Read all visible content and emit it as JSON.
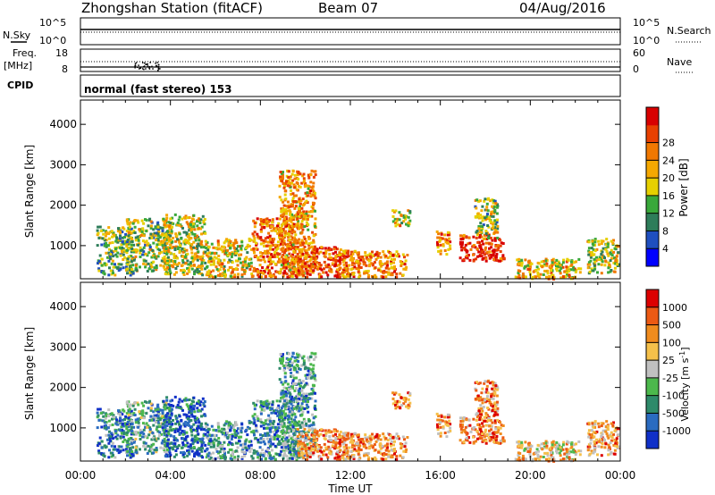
{
  "header": {
    "station": "Zhongshan Station (fitACF)",
    "beam": "Beam 07",
    "date": "04/Aug/2016"
  },
  "noise_panel": {
    "left_label": "N.Sky",
    "right_label": "N.Search",
    "left_ticks": [
      "10^5",
      "10^0"
    ],
    "right_ticks": [
      "10^5",
      "10^0"
    ]
  },
  "freq_panel": {
    "left_label": "Freq.",
    "unit": "[MHz]",
    "right_label": "Nave",
    "left_ticks": [
      "18",
      "8"
    ],
    "right_ticks": [
      "60",
      "0"
    ]
  },
  "cpid": {
    "label": "CPID",
    "mode": "normal (fast stereo) 153"
  },
  "time_axis": {
    "label": "Time UT",
    "ticks": [
      "00:00",
      "04:00",
      "08:00",
      "12:00",
      "16:00",
      "20:00",
      "00:00"
    ],
    "hours": [
      0,
      4,
      8,
      12,
      16,
      20,
      24
    ]
  },
  "chart_data": [
    {
      "type": "heatmap",
      "title": "Power",
      "ylabel": "Slant Range [km]",
      "xlabel": "",
      "xlim": [
        0,
        24
      ],
      "ylim": [
        180,
        4600
      ],
      "yticks": [
        "1000",
        "2000",
        "3000",
        "4000"
      ],
      "ytick_values": [
        1000,
        2000,
        3000,
        4000
      ],
      "colorbar": {
        "label": "Power [dB]",
        "tick_labels": [
          "4",
          "8",
          "12",
          "16",
          "20",
          "24",
          "28"
        ],
        "colors": [
          "#0000ff",
          "#1f4fbf",
          "#2e7d5a",
          "#39a83a",
          "#e6d000",
          "#f5a800",
          "#f07800",
          "#e84000",
          "#d80000"
        ]
      },
      "echo_regions": [
        {
          "t0": 0.7,
          "t1": 2.3,
          "r0": 300,
          "r1": 1500,
          "level": 0.4
        },
        {
          "t0": 2.0,
          "t1": 4.0,
          "r0": 400,
          "r1": 1700,
          "level": 0.45
        },
        {
          "t0": 3.6,
          "t1": 5.5,
          "r0": 300,
          "r1": 1800,
          "level": 0.5
        },
        {
          "t0": 5.5,
          "t1": 7.6,
          "r0": 250,
          "r1": 1200,
          "level": 0.55
        },
        {
          "t0": 7.6,
          "t1": 9.6,
          "r0": 250,
          "r1": 1700,
          "level": 0.75
        },
        {
          "t0": 8.8,
          "t1": 10.4,
          "r0": 300,
          "r1": 2900,
          "level": 0.65
        },
        {
          "t0": 9.6,
          "t1": 12.0,
          "r0": 250,
          "r1": 1000,
          "level": 0.8
        },
        {
          "t0": 11.4,
          "t1": 14.5,
          "r0": 250,
          "r1": 900,
          "level": 0.7
        },
        {
          "t0": 13.8,
          "t1": 14.6,
          "r0": 1500,
          "r1": 1900,
          "level": 0.55
        },
        {
          "t0": 15.8,
          "t1": 16.4,
          "r0": 800,
          "r1": 1400,
          "level": 0.7
        },
        {
          "t0": 16.8,
          "t1": 18.8,
          "r0": 650,
          "r1": 1300,
          "level": 0.9
        },
        {
          "t0": 17.5,
          "t1": 18.5,
          "r0": 1200,
          "r1": 2200,
          "level": 0.45
        },
        {
          "t0": 19.3,
          "t1": 22.2,
          "r0": 200,
          "r1": 700,
          "level": 0.6
        },
        {
          "t0": 22.5,
          "t1": 23.9,
          "r0": 350,
          "r1": 1200,
          "level": 0.5
        }
      ]
    },
    {
      "type": "heatmap",
      "title": "Velocity",
      "ylabel": "Slant Range [km]",
      "xlabel": "Time UT",
      "xlim": [
        0,
        24
      ],
      "ylim": [
        180,
        4600
      ],
      "yticks": [
        "1000",
        "2000",
        "3000",
        "4000"
      ],
      "ytick_values": [
        1000,
        2000,
        3000,
        4000
      ],
      "colorbar": {
        "label": "Velocity [m s^-1]",
        "tick_labels": [
          "1000",
          "500",
          "100",
          "25",
          "-25",
          "-100",
          "-500",
          "-1000"
        ],
        "colors": [
          "#1030c8",
          "#2a6bc0",
          "#2e8a6a",
          "#4cb84c",
          "#c0c0c0",
          "#f5c04a",
          "#f08c1e",
          "#ec5a14",
          "#dc0000"
        ]
      },
      "echo_regions": [
        {
          "t0": 0.7,
          "t1": 2.3,
          "r0": 300,
          "r1": 1500,
          "level": 0.25
        },
        {
          "t0": 2.0,
          "t1": 4.0,
          "r0": 400,
          "r1": 1700,
          "level": 0.35
        },
        {
          "t0": 3.6,
          "t1": 5.5,
          "r0": 300,
          "r1": 1800,
          "level": 0.15
        },
        {
          "t0": 5.5,
          "t1": 7.6,
          "r0": 250,
          "r1": 1200,
          "level": 0.3
        },
        {
          "t0": 7.6,
          "t1": 9.6,
          "r0": 250,
          "r1": 1700,
          "level": 0.3
        },
        {
          "t0": 8.8,
          "t1": 10.4,
          "r0": 300,
          "r1": 2900,
          "level": 0.3
        },
        {
          "t0": 9.6,
          "t1": 12.0,
          "r0": 250,
          "r1": 1000,
          "level": 0.72
        },
        {
          "t0": 11.4,
          "t1": 14.5,
          "r0": 250,
          "r1": 900,
          "level": 0.72
        },
        {
          "t0": 13.8,
          "t1": 14.6,
          "r0": 1500,
          "r1": 1900,
          "level": 0.78
        },
        {
          "t0": 15.8,
          "t1": 16.4,
          "r0": 800,
          "r1": 1400,
          "level": 0.72
        },
        {
          "t0": 16.8,
          "t1": 18.8,
          "r0": 650,
          "r1": 1300,
          "level": 0.75
        },
        {
          "t0": 17.5,
          "t1": 18.5,
          "r0": 1200,
          "r1": 2200,
          "level": 0.72
        },
        {
          "t0": 19.3,
          "t1": 22.2,
          "r0": 200,
          "r1": 700,
          "level": 0.62
        },
        {
          "t0": 22.5,
          "t1": 23.9,
          "r0": 350,
          "r1": 1200,
          "level": 0.7
        }
      ]
    }
  ]
}
